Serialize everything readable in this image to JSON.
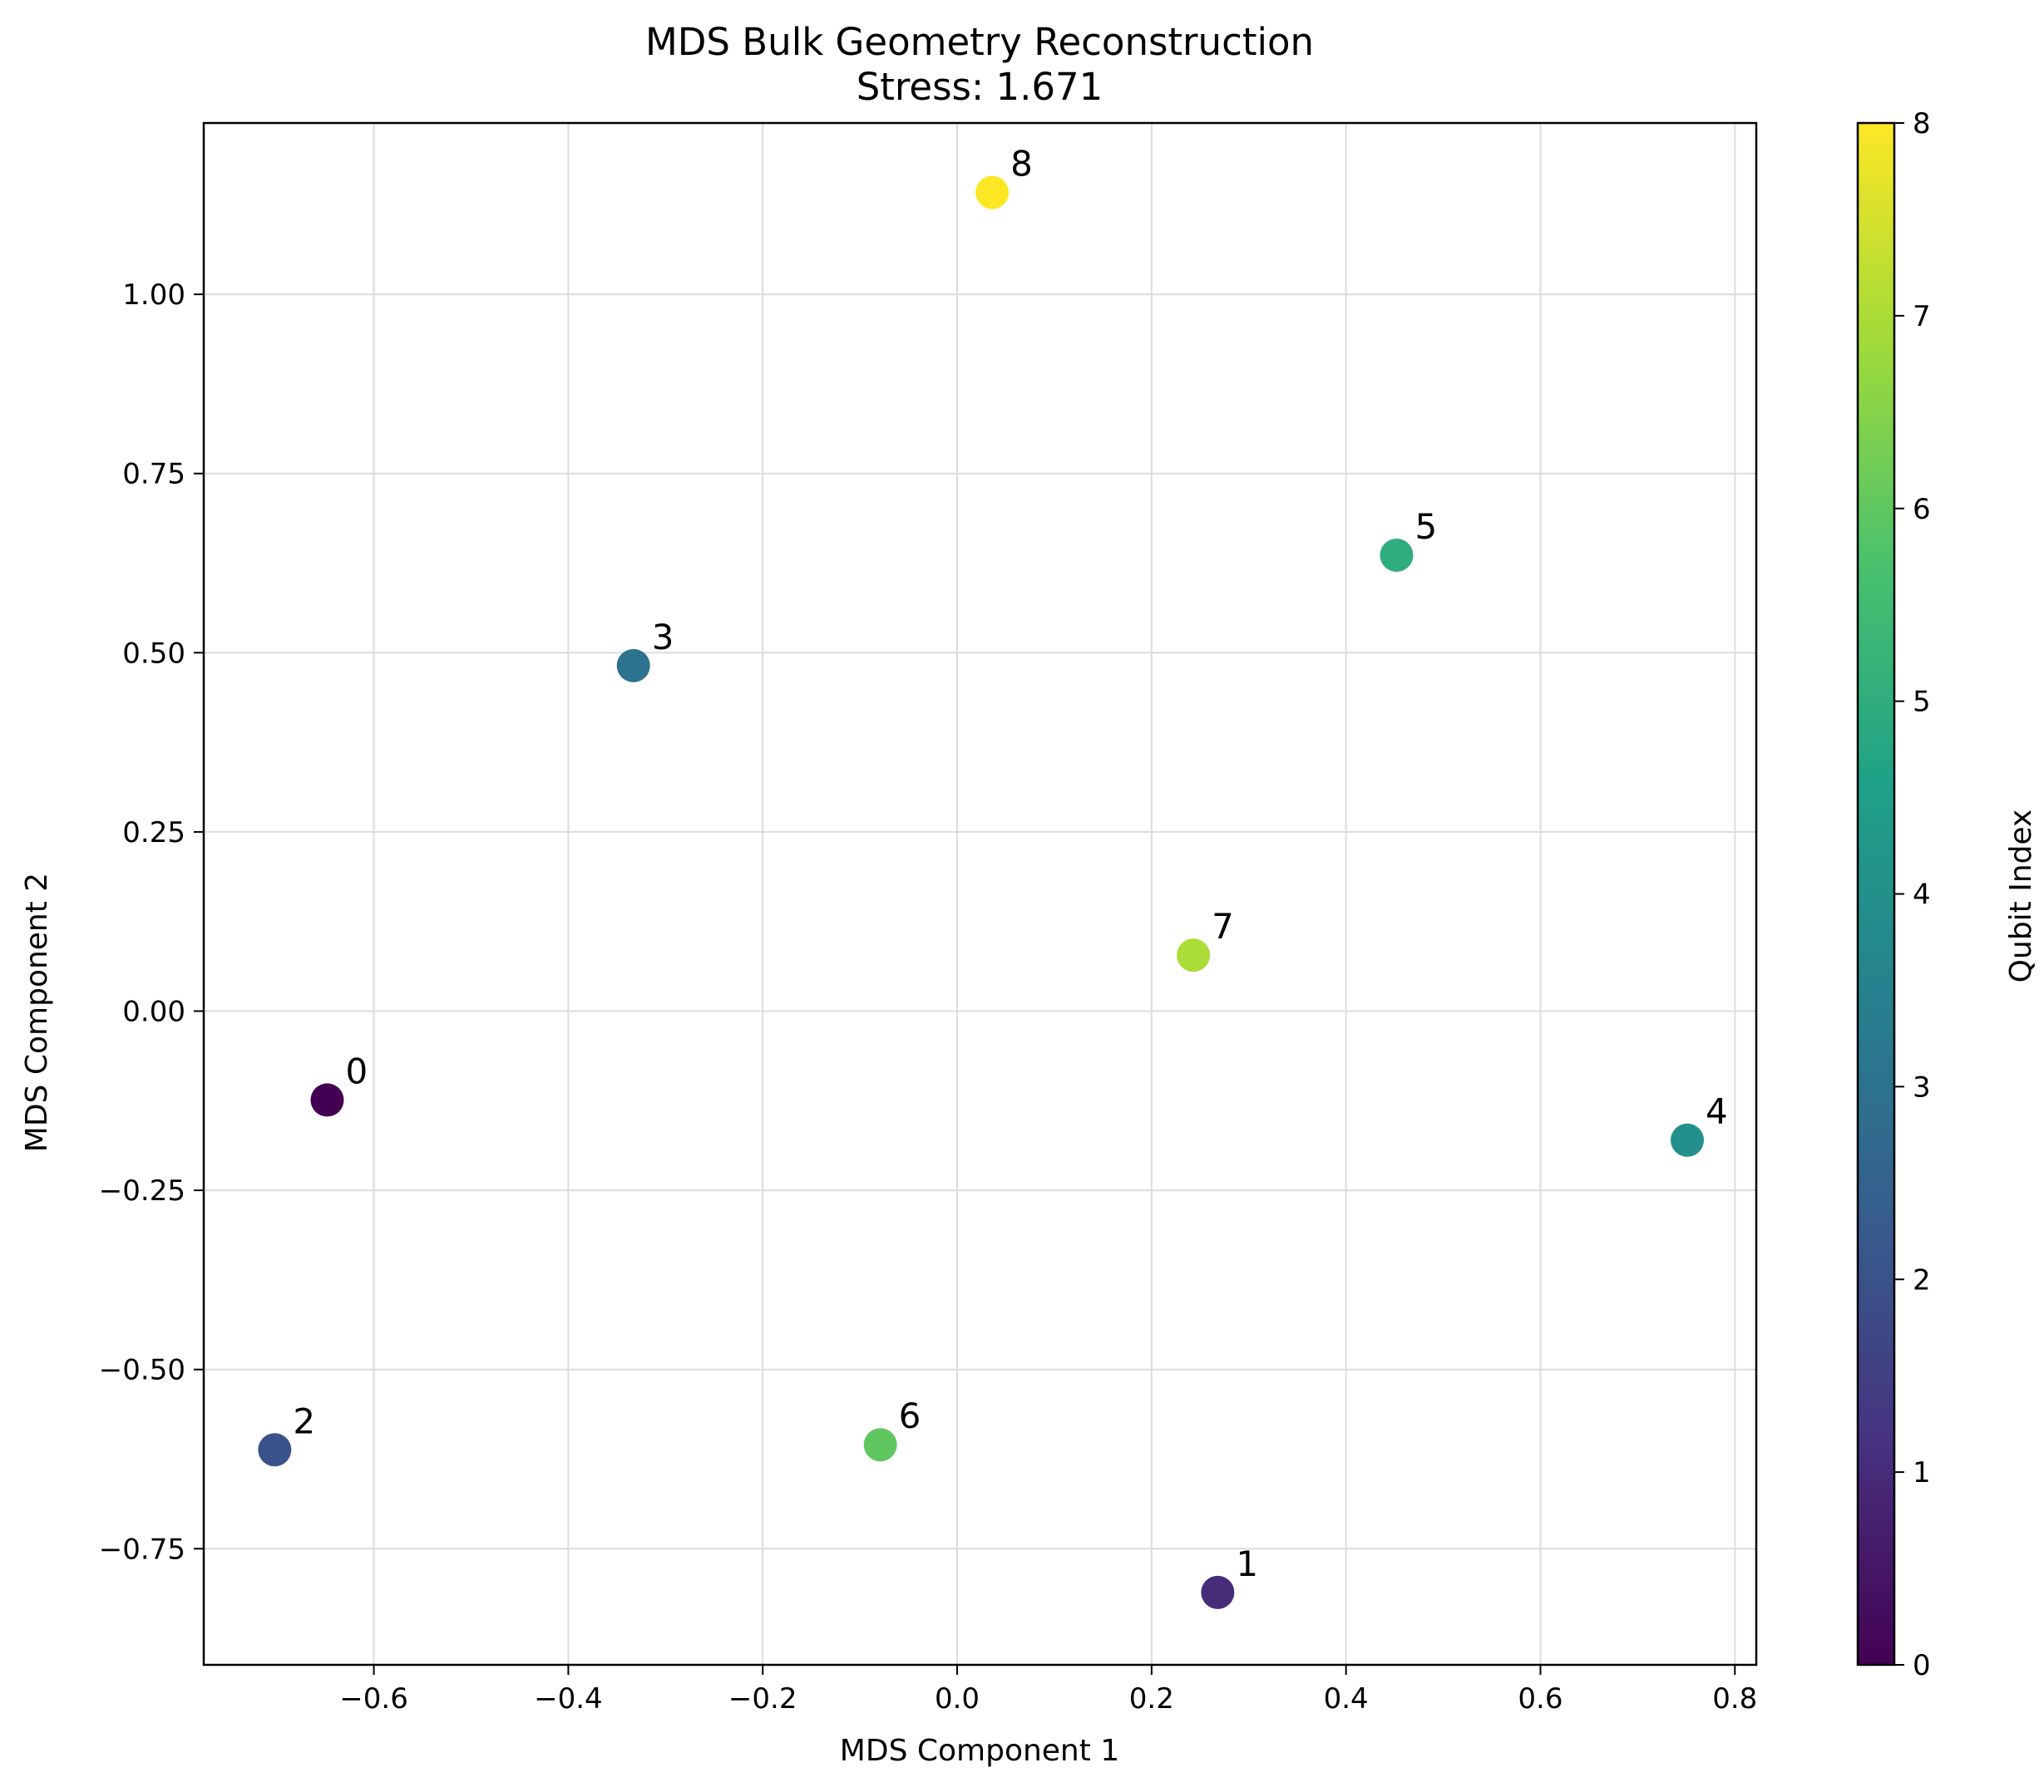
{
  "chart_data": {
    "type": "scatter",
    "title": "MDS Bulk Geometry Reconstruction",
    "subtitle": "Stress: 1.671",
    "xlabel": "MDS Component 1",
    "ylabel": "MDS Component 2",
    "xlim": [
      -0.775,
      0.822
    ],
    "ylim": [
      -0.912,
      1.239
    ],
    "xticks": [
      -0.6,
      -0.4,
      -0.2,
      0.0,
      0.2,
      0.4,
      0.6,
      0.8
    ],
    "xtick_labels": [
      "−0.6",
      "−0.4",
      "−0.2",
      "0.0",
      "0.2",
      "0.4",
      "0.6",
      "0.8"
    ],
    "yticks": [
      -0.75,
      -0.5,
      -0.25,
      0.0,
      0.25,
      0.5,
      0.75,
      1.0
    ],
    "ytick_labels": [
      "−0.75",
      "−0.50",
      "−0.25",
      "0.00",
      "0.25",
      "0.50",
      "0.75",
      "1.00"
    ],
    "grid": true,
    "points": [
      {
        "label": "0",
        "x": -0.648,
        "y": -0.124,
        "c": 0
      },
      {
        "label": "1",
        "x": 0.268,
        "y": -0.811,
        "c": 1
      },
      {
        "label": "2",
        "x": -0.702,
        "y": -0.612,
        "c": 2
      },
      {
        "label": "3",
        "x": -0.333,
        "y": 0.482,
        "c": 3
      },
      {
        "label": "4",
        "x": 0.751,
        "y": -0.18,
        "c": 4
      },
      {
        "label": "5",
        "x": 0.452,
        "y": 0.636,
        "c": 5
      },
      {
        "label": "6",
        "x": -0.079,
        "y": -0.605,
        "c": 6
      },
      {
        "label": "7",
        "x": 0.243,
        "y": 0.078,
        "c": 7
      },
      {
        "label": "8",
        "x": 0.036,
        "y": 1.142,
        "c": 8
      }
    ],
    "colorbar": {
      "label": "Qubit Index",
      "range": [
        0,
        8
      ],
      "ticks": [
        "0",
        "1",
        "2",
        "3",
        "4",
        "5",
        "6",
        "7",
        "8"
      ],
      "colormap": "viridis",
      "colors": [
        "#440154",
        "#46327e",
        "#365c8d",
        "#277f8e",
        "#1fa187",
        "#4ac16d",
        "#a0da39",
        "#fde725"
      ]
    }
  }
}
